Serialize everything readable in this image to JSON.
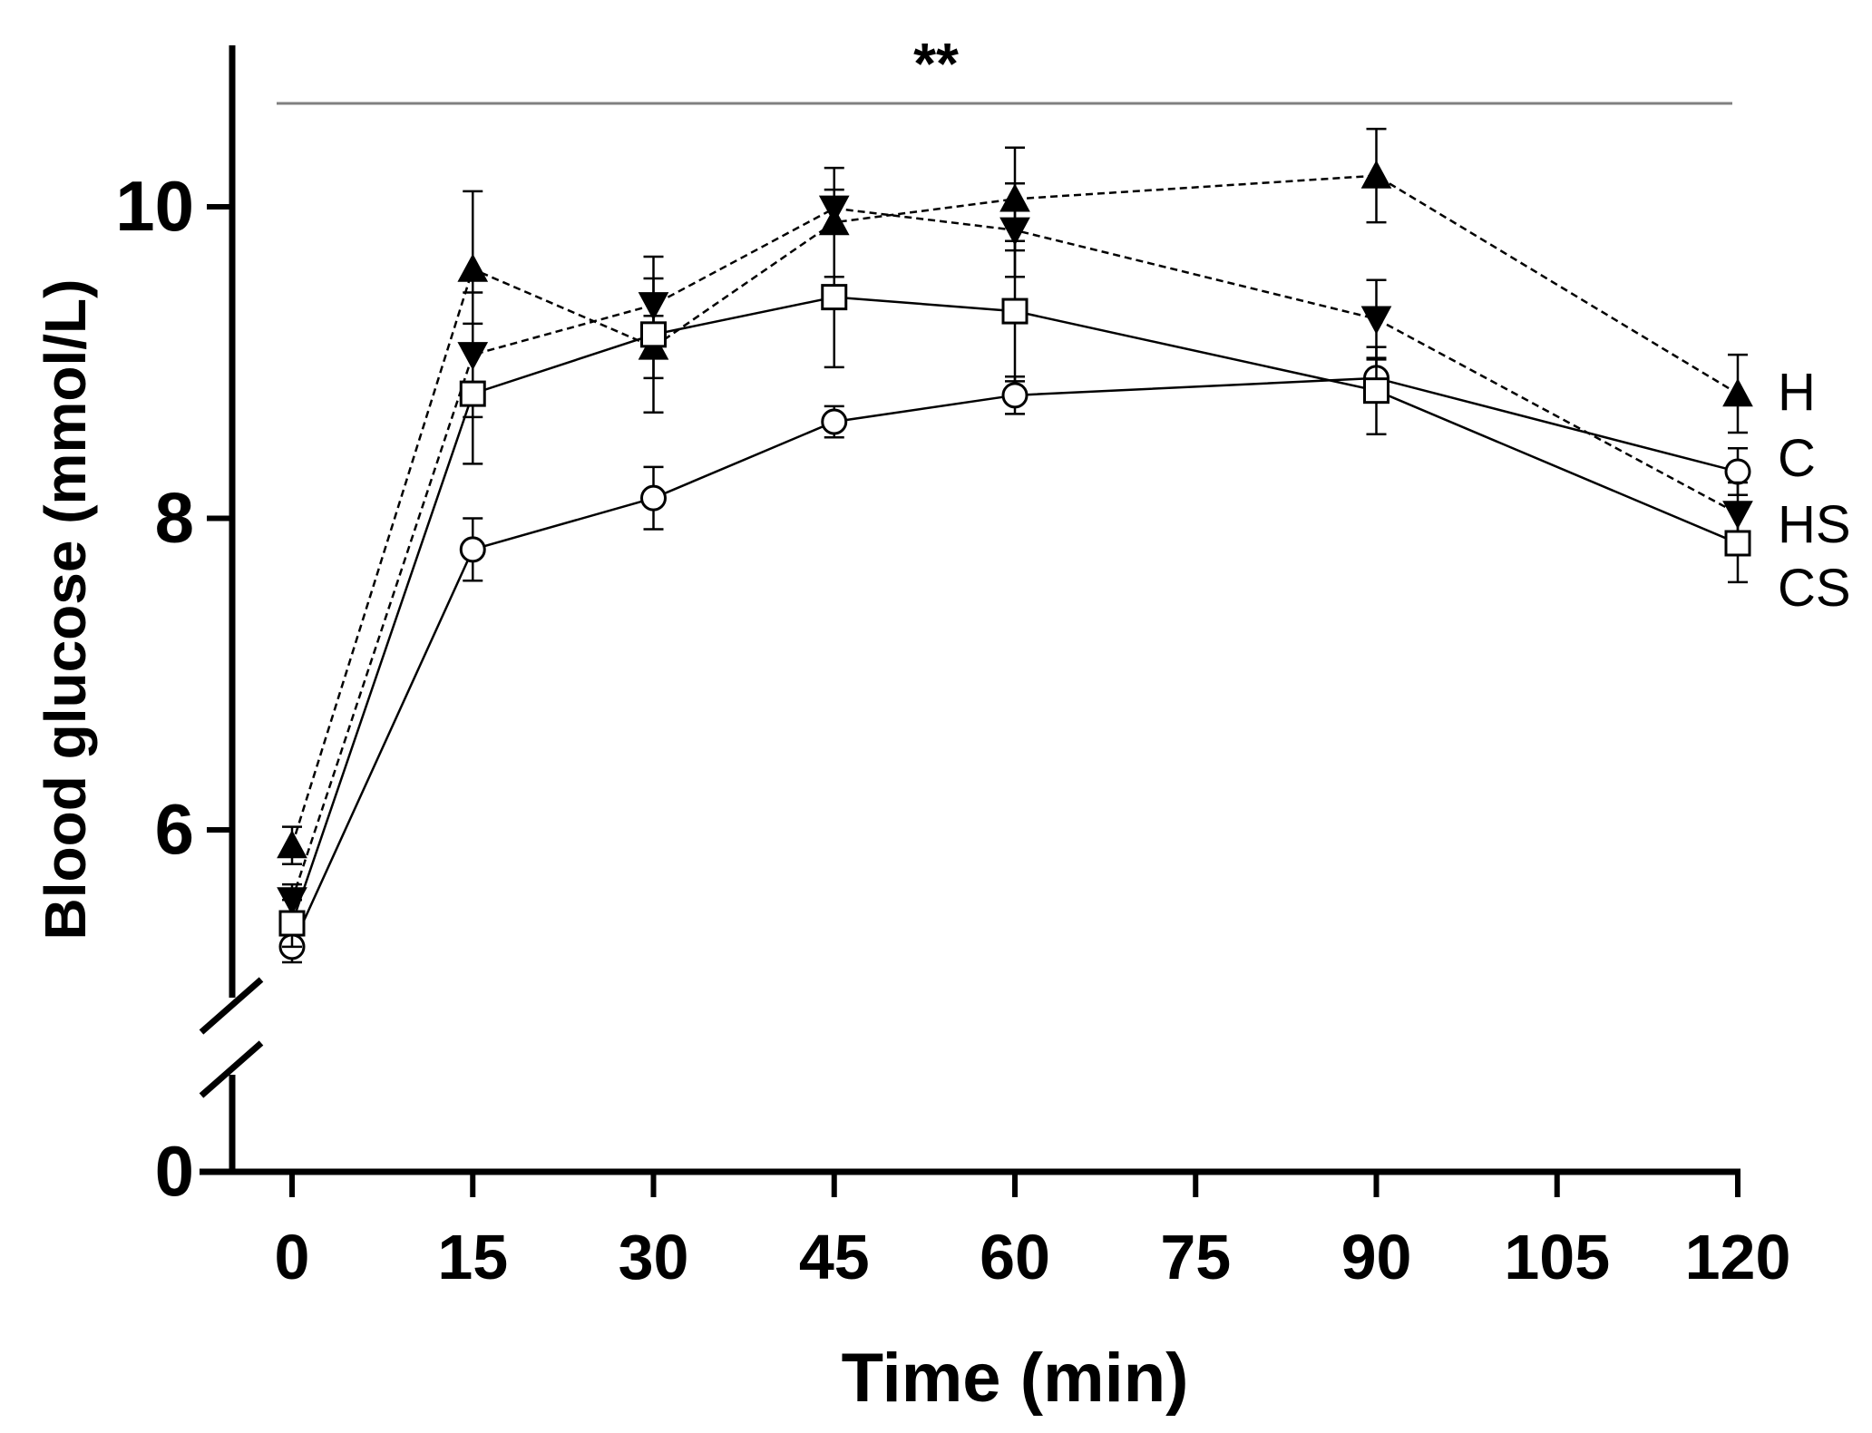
{
  "chart_data": {
    "type": "line",
    "title": "",
    "xlabel": "Time (min)",
    "ylabel": "Blood glucose (mmol/L)",
    "x_ticks": [
      0,
      15,
      30,
      45,
      60,
      75,
      90,
      105,
      120
    ],
    "y_ticks": [
      0,
      6,
      8,
      10
    ],
    "xlim": [
      0,
      120
    ],
    "ylim_upper_segment": [
      5.0,
      10.6
    ],
    "y_axis_break": true,
    "significance": "**",
    "colors": {
      "line": "#000000",
      "marker_fill_open": "#ffffff",
      "significance_line": "#808080"
    },
    "series": [
      {
        "name": "H",
        "marker": "triangle-up-filled",
        "line_style": "dashed",
        "x": [
          0,
          15,
          30,
          45,
          60,
          90,
          120
        ],
        "values": [
          5.9,
          9.6,
          9.1,
          9.9,
          10.05,
          10.2,
          8.8
        ],
        "error": [
          0.12,
          0.5,
          0.2,
          0.35,
          0.33,
          0.3,
          0.25
        ]
      },
      {
        "name": "C",
        "marker": "circle-open",
        "line_style": "solid",
        "x": [
          0,
          15,
          30,
          45,
          60,
          90,
          120
        ],
        "values": [
          5.25,
          7.8,
          8.13,
          8.62,
          8.79,
          8.9,
          8.3
        ],
        "error": [
          0.1,
          0.2,
          0.2,
          0.1,
          0.12,
          0.12,
          0.15
        ]
      },
      {
        "name": "HS",
        "marker": "triangle-down-filled",
        "line_style": "dashed",
        "x": [
          0,
          15,
          30,
          45,
          60,
          90,
          120
        ],
        "values": [
          5.55,
          9.05,
          9.37,
          9.99,
          9.85,
          9.28,
          8.03
        ],
        "error": [
          0.1,
          0.4,
          0.17,
          0.12,
          0.3,
          0.25,
          0.2
        ]
      },
      {
        "name": "CS",
        "marker": "square-open",
        "line_style": "solid",
        "x": [
          0,
          15,
          30,
          45,
          60,
          90,
          120
        ],
        "values": [
          5.4,
          8.8,
          9.18,
          9.42,
          9.33,
          8.82,
          7.84
        ],
        "error": [
          0.15,
          0.45,
          0.5,
          0.45,
          0.45,
          0.28,
          0.25
        ]
      }
    ],
    "legend": [
      "H",
      "C",
      "HS",
      "CS"
    ],
    "legend_placement": "right, at line ends"
  }
}
